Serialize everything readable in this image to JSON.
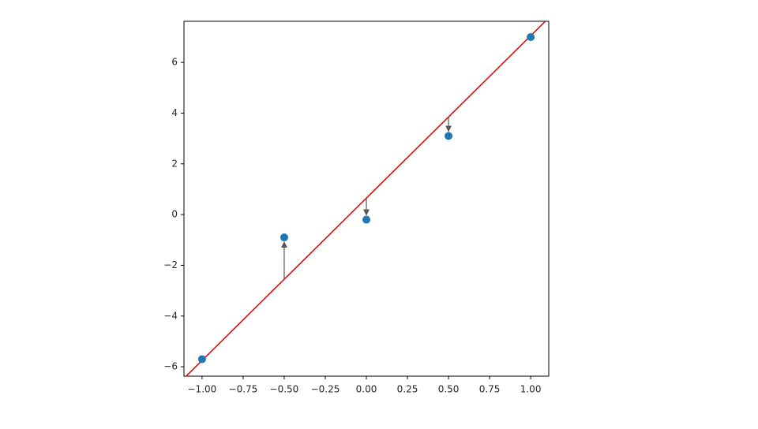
{
  "chart_data": {
    "type": "scatter",
    "x": [
      -1,
      -0.5,
      0,
      0.5,
      1
    ],
    "values": [
      -5.7,
      -0.9,
      -0.2,
      3.1,
      7.0
    ],
    "color": "#1f77b4",
    "fitted": [
      -5.75,
      -2.55,
      0.65,
      3.85,
      7.05
    ],
    "arrow_color": "#555555",
    "fit": {
      "x": [
        -1.1,
        1.1
      ],
      "values": [
        -6.39,
        7.69
      ],
      "color": "#e00000"
    },
    "xlim": [
      -1.11,
      1.11
    ],
    "ylim": [
      -6.37,
      7.62
    ],
    "xticks": [
      {
        "value": -1,
        "label": "−1.00"
      },
      {
        "value": -0.75,
        "label": "−0.75"
      },
      {
        "value": -0.5,
        "label": "−0.50"
      },
      {
        "value": -0.25,
        "label": "−0.25"
      },
      {
        "value": 0,
        "label": "0.00"
      },
      {
        "value": 0.25,
        "label": "0.25"
      },
      {
        "value": 0.5,
        "label": "0.50"
      },
      {
        "value": 0.75,
        "label": "0.75"
      },
      {
        "value": 1,
        "label": "1.00"
      }
    ],
    "yticks": [
      {
        "value": -6,
        "label": "−6"
      },
      {
        "value": -4,
        "label": "−4"
      },
      {
        "value": -2,
        "label": "−2"
      },
      0,
      2,
      4,
      6
    ],
    "grid": false
  }
}
